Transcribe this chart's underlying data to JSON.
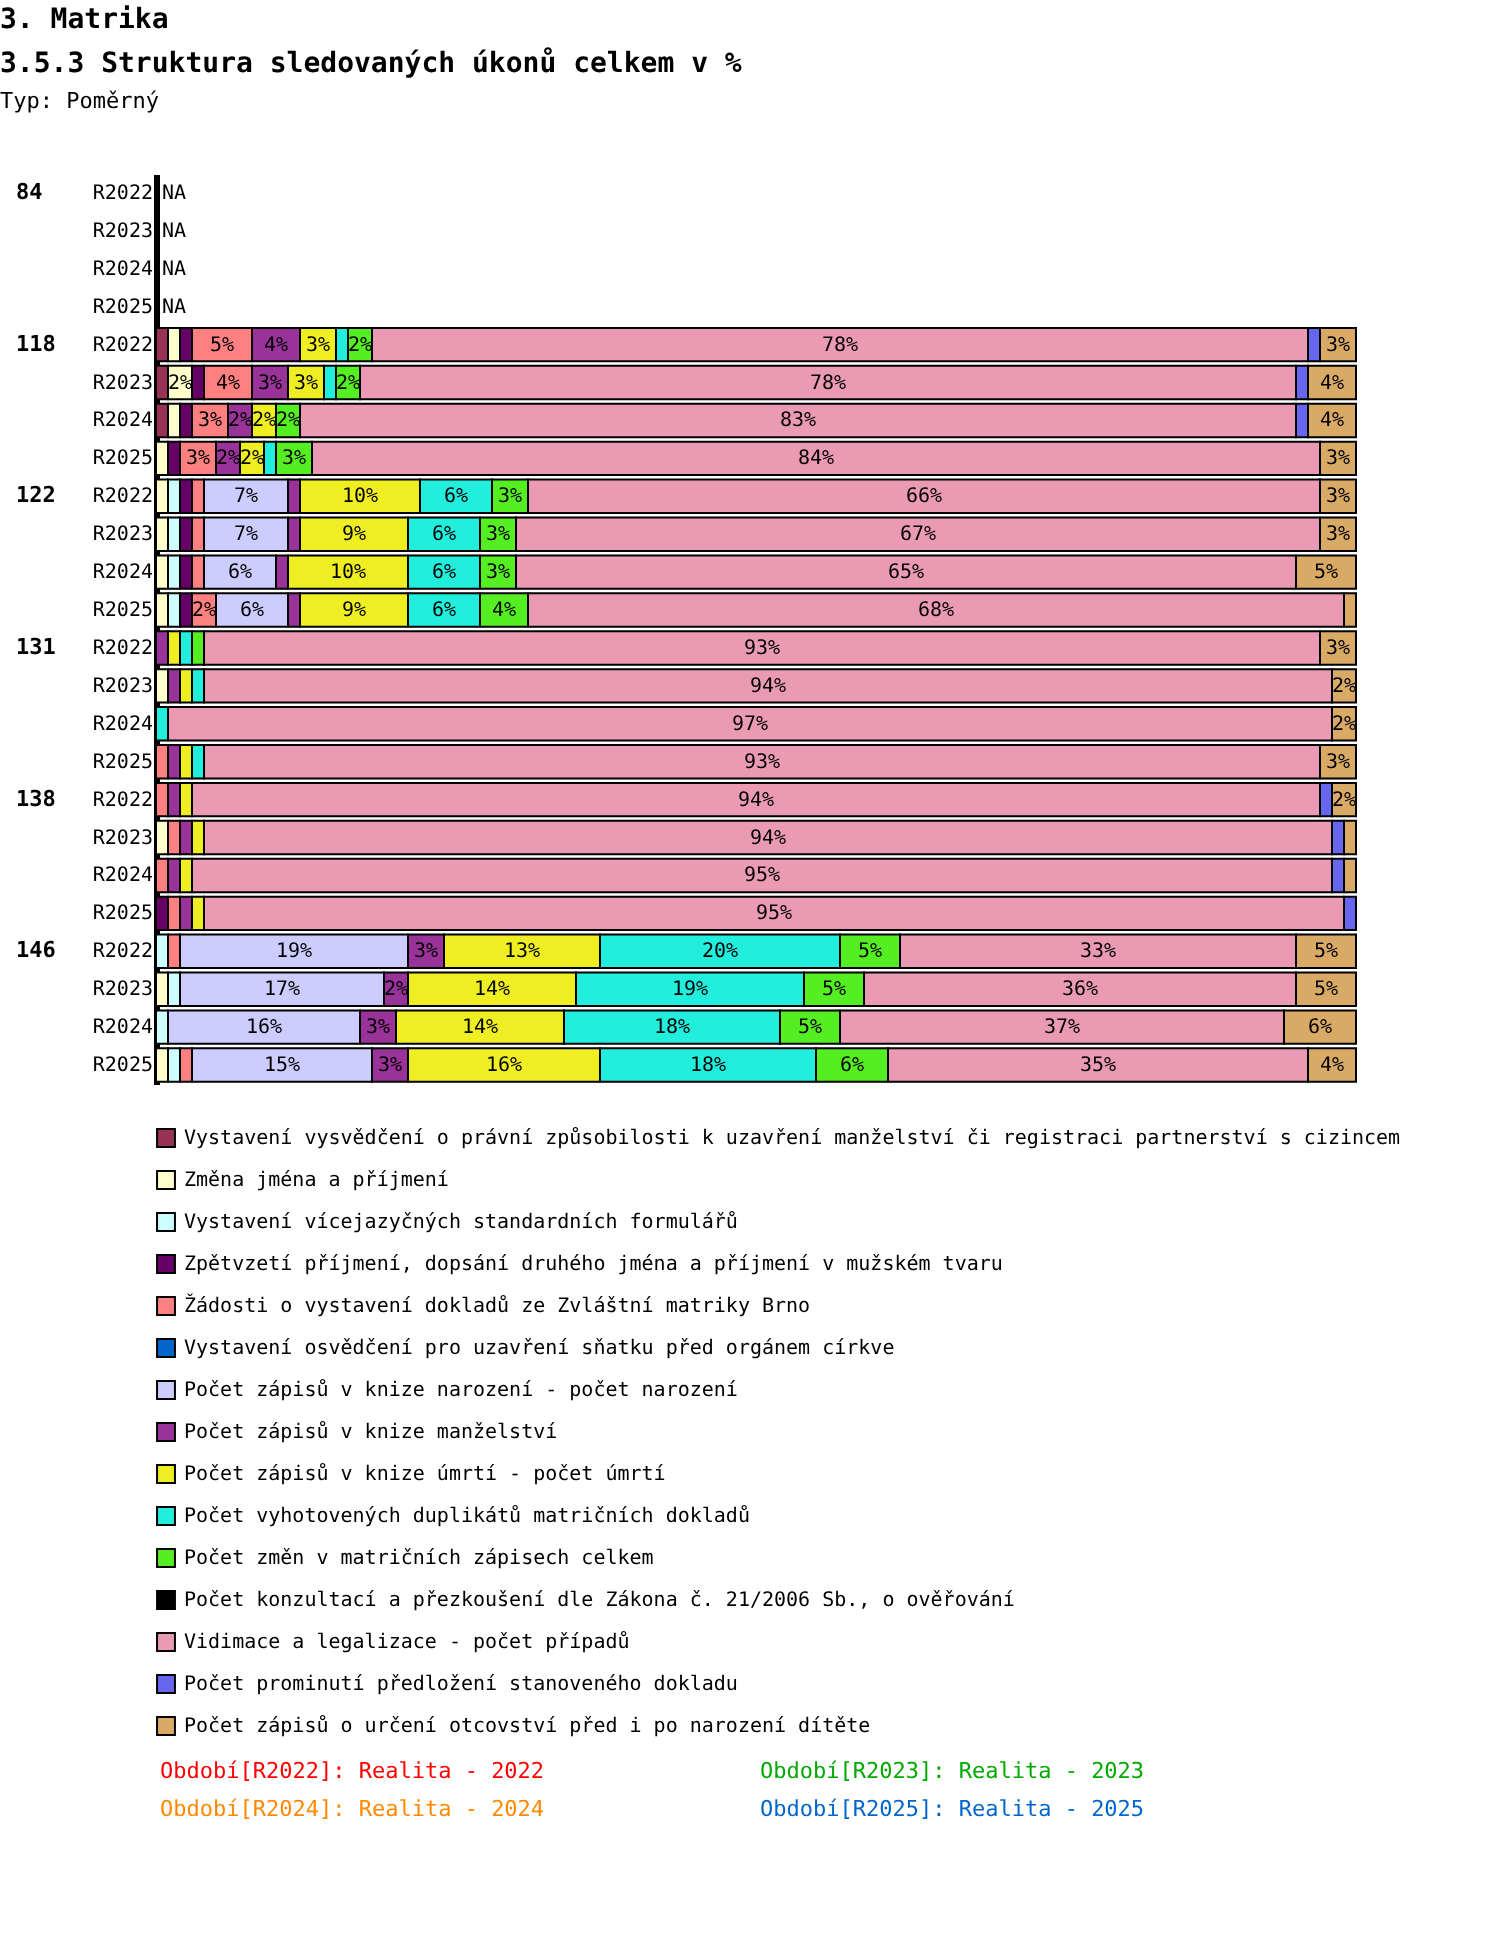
{
  "chart_data": {
    "type": "bar",
    "orientation": "horizontal",
    "stacked": true,
    "title": "3. Matrika",
    "subtitle": "3.5.3 Struktura sledovaných úkonů celkem v %",
    "categories": [
      "R2022",
      "R2023",
      "R2024",
      "R2025",
      "R2022",
      "R2023",
      "R2024",
      "R2025",
      "R2022",
      "R2023",
      "R2024",
      "R2025",
      "R2022",
      "R2023",
      "R2024",
      "R2025",
      "R2022",
      "R2023",
      "R2024",
      "R2025",
      "R2022",
      "R2023",
      "R2024",
      "R2025"
    ],
    "legend": "bottom",
    "annotations": [
      "Typ: Poměrný",
      "84",
      "118",
      "122",
      "131",
      "138",
      "146",
      "Období[R2022]: Realita - 2022",
      "Období[R2023]: Realita - 2023",
      "Období[R2024]: Realita - 2024",
      "Období[R2025]: Realita - 2025"
    ],
    "series": [
      {
        "name": "Vystavení vysvědčení o právní způsobilosti k uzavření manželství či registraci partnerství s cizincem",
        "color": "#993355",
        "values": [
          null,
          null,
          null,
          null,
          1,
          1,
          1,
          null,
          null,
          null,
          null,
          null,
          null,
          null,
          null,
          null,
          null,
          null,
          null,
          null,
          null,
          null,
          null,
          null
        ],
        "value_labels": [
          "NA",
          "NA",
          "NA",
          "NA",
          null,
          null,
          null,
          null,
          null,
          null,
          null,
          null,
          null,
          null,
          null,
          null,
          null,
          null,
          null,
          null,
          null,
          null,
          null,
          null
        ]
      },
      {
        "name": "Změna jména a příjmení",
        "color": "#ffffcc",
        "values": [
          null,
          null,
          null,
          null,
          1,
          2,
          1,
          1,
          1,
          1,
          1,
          1,
          null,
          1,
          null,
          null,
          null,
          1,
          null,
          null,
          null,
          1,
          null,
          1
        ],
        "value_labels": [
          null,
          null,
          null,
          null,
          null,
          "2%",
          null,
          null,
          null,
          null,
          null,
          null,
          null,
          null,
          null,
          null,
          null,
          null,
          null,
          null,
          null,
          null,
          null,
          null
        ]
      },
      {
        "name": "Vystavení vícejazyčných standardních formulářů",
        "color": "#ccffff",
        "values": [
          null,
          null,
          null,
          null,
          null,
          null,
          null,
          null,
          1,
          1,
          1,
          1,
          null,
          null,
          null,
          null,
          null,
          null,
          null,
          null,
          1,
          1,
          1,
          1
        ]
      },
      {
        "name": "Zpětvzetí příjmení, dopsání druhého jména a příjmení v mužském tvaru",
        "color": "#660066",
        "values": [
          null,
          null,
          null,
          null,
          1,
          1,
          1,
          1,
          1,
          1,
          1,
          1,
          null,
          null,
          null,
          null,
          null,
          null,
          null,
          1,
          null,
          null,
          null,
          null
        ]
      },
      {
        "name": "Žádosti o vystavení dokladů ze Zvláštní matriky Brno",
        "color": "#ff8080",
        "values": [
          null,
          null,
          null,
          null,
          5,
          4,
          3,
          3,
          1,
          1,
          1,
          2,
          null,
          null,
          null,
          1,
          1,
          1,
          1,
          1,
          1,
          null,
          null,
          1
        ],
        "value_labels": [
          null,
          null,
          null,
          null,
          "5%",
          "4%",
          "3%",
          "3%",
          null,
          null,
          null,
          "2%",
          null,
          null,
          null,
          null,
          null,
          null,
          null,
          null,
          null,
          null,
          null,
          null
        ]
      },
      {
        "name": "Vystavení osvědčení pro uzavření sňatku před orgánem církve",
        "color": "#0066cc",
        "values": [
          null,
          null,
          null,
          null,
          null,
          null,
          null,
          null,
          null,
          null,
          null,
          null,
          null,
          null,
          null,
          null,
          null,
          null,
          null,
          null,
          null,
          null,
          null,
          null
        ]
      },
      {
        "name": "Počet zápisů v knize narození - počet narození",
        "color": "#ccccff",
        "values": [
          null,
          null,
          null,
          null,
          null,
          null,
          null,
          null,
          7,
          7,
          6,
          6,
          null,
          null,
          null,
          null,
          null,
          null,
          null,
          null,
          19,
          17,
          16,
          15
        ],
        "value_labels": [
          null,
          null,
          null,
          null,
          null,
          null,
          null,
          null,
          "7%",
          "7%",
          "6%",
          "6%",
          null,
          null,
          null,
          null,
          null,
          null,
          null,
          null,
          "19%",
          "17%",
          "16%",
          "15%"
        ]
      },
      {
        "name": "Počet zápisů v knize manželství",
        "color": "#993399",
        "values": [
          null,
          null,
          null,
          null,
          4,
          3,
          2,
          2,
          1,
          1,
          1,
          1,
          1,
          1,
          null,
          1,
          1,
          1,
          1,
          1,
          3,
          2,
          3,
          3
        ],
        "value_labels": [
          null,
          null,
          null,
          null,
          "4%",
          "3%",
          "2%",
          "2%",
          null,
          null,
          null,
          null,
          null,
          null,
          null,
          null,
          null,
          null,
          null,
          null,
          "3%",
          "2%",
          "3%",
          "3%"
        ]
      },
      {
        "name": "Počet zápisů v knize úmrtí - počet úmrtí",
        "color": "#eeee22",
        "values": [
          null,
          null,
          null,
          null,
          3,
          3,
          2,
          2,
          10,
          9,
          10,
          9,
          1,
          1,
          null,
          1,
          1,
          1,
          1,
          1,
          13,
          14,
          14,
          16
        ],
        "value_labels": [
          null,
          null,
          null,
          null,
          "3%",
          "3%",
          "2%",
          "2%",
          "10%",
          "9%",
          "10%",
          "9%",
          null,
          null,
          null,
          null,
          null,
          null,
          null,
          null,
          "13%",
          "14%",
          "14%",
          "16%"
        ]
      },
      {
        "name": "Počet vyhotovených duplikátů matričních dokladů",
        "color": "#22eedd",
        "values": [
          null,
          null,
          null,
          null,
          1,
          1,
          null,
          1,
          6,
          6,
          6,
          6,
          1,
          1,
          1,
          1,
          null,
          null,
          null,
          null,
          20,
          19,
          18,
          18
        ],
        "value_labels": [
          null,
          null,
          null,
          null,
          null,
          null,
          null,
          null,
          "6%",
          "6%",
          "6%",
          "6%",
          null,
          null,
          null,
          null,
          null,
          null,
          null,
          null,
          "20%",
          "19%",
          "18%",
          "18%"
        ]
      },
      {
        "name": "Počet změn v matričních zápisech celkem",
        "color": "#55ee22",
        "values": [
          null,
          null,
          null,
          null,
          2,
          2,
          2,
          3,
          3,
          3,
          3,
          4,
          1,
          null,
          null,
          null,
          null,
          null,
          null,
          null,
          5,
          5,
          5,
          6
        ],
        "value_labels": [
          null,
          null,
          null,
          null,
          "2%",
          "2%",
          "2%",
          "3%",
          "3%",
          "3%",
          "3%",
          "4%",
          null,
          null,
          null,
          null,
          null,
          null,
          null,
          null,
          "5%",
          "5%",
          "5%",
          "6%"
        ]
      },
      {
        "name": "Počet  konzultací a přezkoušení dle Zákona č. 21/2006 Sb., o ověřování",
        "color": "#000000",
        "values": [
          null,
          null,
          null,
          null,
          null,
          null,
          null,
          null,
          null,
          null,
          null,
          null,
          null,
          null,
          null,
          null,
          null,
          null,
          null,
          null,
          null,
          null,
          null,
          null
        ]
      },
      {
        "name": "Vidimace a legalizace - počet případů",
        "color": "#ea9ab2",
        "values": [
          null,
          null,
          null,
          null,
          78,
          78,
          83,
          84,
          66,
          67,
          65,
          68,
          93,
          94,
          97,
          93,
          94,
          94,
          95,
          95,
          33,
          36,
          37,
          35
        ],
        "value_labels": [
          null,
          null,
          null,
          null,
          "78%",
          "78%",
          "83%",
          "84%",
          "66%",
          "67%",
          "65%",
          "68%",
          "93%",
          "94%",
          "97%",
          "93%",
          "94%",
          "94%",
          "95%",
          "95%",
          "33%",
          "36%",
          "37%",
          "35%"
        ]
      },
      {
        "name": "Počet prominutí předložení stanoveného dokladu",
        "color": "#6666ee",
        "values": [
          null,
          null,
          null,
          null,
          1,
          1,
          1,
          null,
          null,
          null,
          null,
          null,
          null,
          null,
          null,
          null,
          1,
          1,
          1,
          1,
          null,
          null,
          null,
          null
        ]
      },
      {
        "name": "Počet zápisů o určení otcovství před i po narození dítěte",
        "color": "#d9aa66",
        "values": [
          null,
          null,
          null,
          null,
          3,
          4,
          4,
          3,
          3,
          3,
          5,
          1,
          3,
          2,
          2,
          3,
          2,
          1,
          1,
          null,
          5,
          5,
          6,
          4
        ],
        "value_labels": [
          null,
          null,
          null,
          null,
          "3%",
          "4%",
          "4%",
          "3%",
          "3%",
          "3%",
          "5%",
          null,
          "3%",
          "2%",
          "2%",
          "3%",
          "2%",
          null,
          null,
          null,
          "5%",
          "5%",
          "6%",
          "4%"
        ]
      }
    ]
  }
}
